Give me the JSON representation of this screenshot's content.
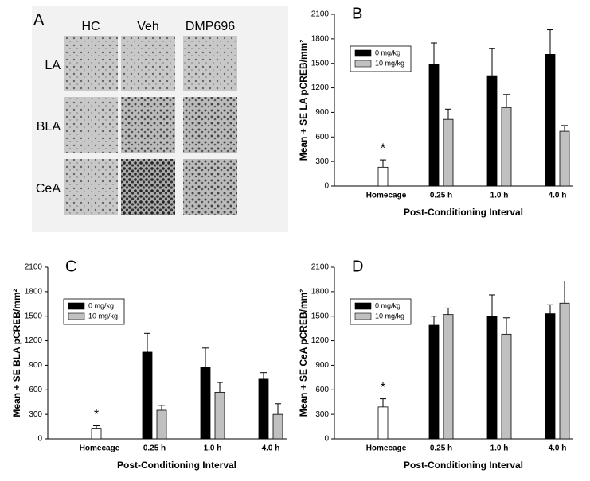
{
  "panel_a": {
    "panel_label": "A",
    "columns": [
      "HC",
      "Veh",
      "DMP696"
    ],
    "rows": [
      "LA",
      "BLA",
      "CeA"
    ]
  },
  "chart_data": [
    {
      "type": "bar",
      "panel_label": "B",
      "ylabel": "Mean + SE LA pCREB/mm²",
      "xlabel": "Post-Conditioning Interval",
      "categories": [
        "Homecage",
        "0.25 h",
        "1.0 h",
        "4.0 h"
      ],
      "control": {
        "value": 230,
        "error": 90,
        "color": "#ffffff",
        "annotation": "*"
      },
      "series": [
        {
          "name": "0 mg/kg",
          "color": "#000000",
          "values": [
            null,
            1490,
            1350,
            1610
          ],
          "errors": [
            null,
            260,
            330,
            300
          ]
        },
        {
          "name": "10 mg/kg",
          "color": "#c0c0c0",
          "values": [
            null,
            815,
            960,
            670
          ],
          "errors": [
            null,
            125,
            160,
            70
          ]
        }
      ],
      "ylim": [
        0,
        2100
      ],
      "yticks": [
        0,
        300,
        600,
        900,
        1200,
        1500,
        1800,
        2100
      ],
      "legend": "upper left"
    },
    {
      "type": "bar",
      "panel_label": "C",
      "ylabel": "Mean + SE BLA pCREB/mm²",
      "xlabel": "Post-Conditioning Interval",
      "categories": [
        "Homecage",
        "0.25 h",
        "1.0 h",
        "4.0 h"
      ],
      "control": {
        "value": 130,
        "error": 30,
        "color": "#ffffff",
        "annotation": "*"
      },
      "series": [
        {
          "name": "0 mg/kg",
          "color": "#000000",
          "values": [
            null,
            1060,
            880,
            730
          ],
          "errors": [
            null,
            230,
            230,
            80
          ]
        },
        {
          "name": "10 mg/kg",
          "color": "#c0c0c0",
          "values": [
            null,
            350,
            570,
            300
          ],
          "errors": [
            null,
            60,
            120,
            130
          ]
        }
      ],
      "ylim": [
        0,
        2100
      ],
      "yticks": [
        0,
        300,
        600,
        900,
        1200,
        1500,
        1800,
        2100
      ],
      "legend": "upper left"
    },
    {
      "type": "bar",
      "panel_label": "D",
      "ylabel": "Mean + SE CeA pCREB/mm²",
      "xlabel": "Post-Conditioning Interval",
      "categories": [
        "Homecage",
        "0.25 h",
        "1.0 h",
        "4.0 h"
      ],
      "control": {
        "value": 390,
        "error": 100,
        "color": "#ffffff",
        "annotation": "*"
      },
      "series": [
        {
          "name": "0 mg/kg",
          "color": "#000000",
          "values": [
            null,
            1390,
            1500,
            1530
          ],
          "errors": [
            null,
            110,
            260,
            110
          ]
        },
        {
          "name": "10 mg/kg",
          "color": "#c0c0c0",
          "values": [
            null,
            1520,
            1280,
            1660
          ],
          "errors": [
            null,
            80,
            200,
            270
          ]
        }
      ],
      "ylim": [
        0,
        2100
      ],
      "yticks": [
        0,
        300,
        600,
        900,
        1200,
        1500,
        1800,
        2100
      ],
      "legend": "upper left"
    }
  ]
}
